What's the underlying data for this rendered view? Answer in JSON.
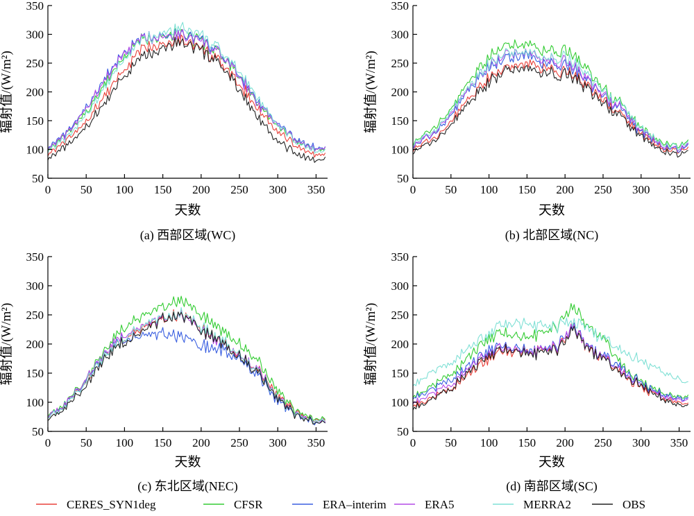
{
  "chart_data": [
    {
      "type": "line",
      "xlabel": "天数",
      "ylabel": "辐射值/(W/m²)",
      "caption": "(a) 西部区域(WC)",
      "xlim": [
        0,
        365
      ],
      "ylim": [
        50,
        350
      ],
      "xticks": [
        "0",
        "50",
        "100",
        "150",
        "200",
        "250",
        "300",
        "350"
      ],
      "yticks": [
        "50",
        "100",
        "150",
        "200",
        "250",
        "300",
        "350"
      ],
      "x": [
        0,
        25,
        50,
        75,
        100,
        125,
        150,
        175,
        200,
        225,
        250,
        275,
        300,
        325,
        350,
        362
      ],
      "series": [
        {
          "name": "CERES_SYN1deg",
          "color": "#e8413a",
          "values": [
            92,
            115,
            148,
            195,
            240,
            275,
            285,
            290,
            275,
            250,
            215,
            170,
            128,
            105,
            90,
            92
          ]
        },
        {
          "name": "CFSR",
          "color": "#33cc33",
          "values": [
            100,
            125,
            165,
            215,
            262,
            292,
            300,
            300,
            288,
            262,
            228,
            180,
            138,
            115,
            100,
            102
          ]
        },
        {
          "name": "ERA-interim",
          "color": "#3a5fe0",
          "values": [
            104,
            128,
            172,
            225,
            270,
            295,
            300,
            300,
            290,
            265,
            230,
            183,
            142,
            118,
            102,
            104
          ]
        },
        {
          "name": "ERA5",
          "color": "#b44ae6",
          "values": [
            102,
            126,
            170,
            222,
            268,
            293,
            299,
            299,
            288,
            263,
            227,
            180,
            140,
            115,
            100,
            101
          ]
        },
        {
          "name": "MERRA2",
          "color": "#7fe0d5",
          "values": [
            98,
            120,
            160,
            210,
            258,
            290,
            305,
            312,
            298,
            270,
            235,
            188,
            140,
            112,
            96,
            98
          ]
        },
        {
          "name": "OBS",
          "color": "#222222",
          "values": [
            85,
            105,
            138,
            183,
            228,
            262,
            280,
            285,
            272,
            245,
            205,
            155,
            112,
            92,
            80,
            84
          ]
        }
      ]
    },
    {
      "type": "line",
      "xlabel": "天数",
      "ylabel": "辐射值/(W/m²)",
      "caption": "(b) 北部区域(NC)",
      "xlim": [
        0,
        365
      ],
      "ylim": [
        50,
        350
      ],
      "xticks": [
        "0",
        "50",
        "100",
        "150",
        "200",
        "250",
        "300",
        "350"
      ],
      "yticks": [
        "50",
        "100",
        "150",
        "200",
        "250",
        "300",
        "350"
      ],
      "x": [
        0,
        25,
        50,
        75,
        100,
        125,
        150,
        175,
        200,
        225,
        250,
        275,
        300,
        325,
        350,
        362
      ],
      "series": [
        {
          "name": "CERES_SYN1deg",
          "color": "#e8413a",
          "values": [
            100,
            118,
            148,
            190,
            225,
            245,
            250,
            240,
            238,
            215,
            185,
            160,
            125,
            105,
            98,
            100
          ]
        },
        {
          "name": "CFSR",
          "color": "#33cc33",
          "values": [
            110,
            135,
            170,
            220,
            262,
            285,
            283,
            270,
            275,
            245,
            205,
            178,
            135,
            115,
            108,
            112
          ]
        },
        {
          "name": "ERA-interim",
          "color": "#3a5fe0",
          "values": [
            105,
            125,
            160,
            205,
            242,
            262,
            265,
            248,
            250,
            225,
            193,
            168,
            128,
            108,
            100,
            105
          ]
        },
        {
          "name": "ERA5",
          "color": "#b44ae6",
          "values": [
            106,
            127,
            163,
            208,
            248,
            268,
            270,
            255,
            255,
            228,
            195,
            170,
            130,
            110,
            102,
            107
          ]
        },
        {
          "name": "MERRA2",
          "color": "#7fe0d5",
          "values": [
            108,
            130,
            165,
            210,
            250,
            270,
            270,
            258,
            262,
            235,
            202,
            178,
            135,
            113,
            105,
            110
          ]
        },
        {
          "name": "OBS",
          "color": "#222222",
          "values": [
            95,
            113,
            142,
            183,
            218,
            240,
            242,
            232,
            232,
            210,
            180,
            155,
            120,
            100,
            92,
            96
          ]
        }
      ]
    },
    {
      "type": "line",
      "xlabel": "天数",
      "ylabel": "辐射值/(W/m²)",
      "caption": "(c) 东北区域(NEC)",
      "xlim": [
        0,
        365
      ],
      "ylim": [
        50,
        350
      ],
      "xticks": [
        "0",
        "50",
        "100",
        "150",
        "200",
        "250",
        "300",
        "350"
      ],
      "yticks": [
        "50",
        "100",
        "150",
        "200",
        "250",
        "300",
        "350"
      ],
      "x": [
        0,
        25,
        50,
        75,
        100,
        125,
        150,
        175,
        200,
        225,
        250,
        275,
        300,
        325,
        350,
        362
      ],
      "series": [
        {
          "name": "CERES_SYN1deg",
          "color": "#e8413a",
          "values": [
            75,
            98,
            138,
            182,
            212,
            225,
            240,
            250,
            228,
            205,
            185,
            155,
            110,
            80,
            70,
            70
          ]
        },
        {
          "name": "CFSR",
          "color": "#33cc33",
          "values": [
            78,
            100,
            142,
            190,
            232,
            245,
            262,
            275,
            252,
            225,
            205,
            170,
            118,
            82,
            72,
            72
          ]
        },
        {
          "name": "ERA-interim",
          "color": "#3a5fe0",
          "values": [
            76,
            98,
            138,
            182,
            210,
            210,
            215,
            212,
            198,
            190,
            178,
            145,
            100,
            76,
            65,
            66
          ]
        },
        {
          "name": "ERA5",
          "color": "#b44ae6",
          "values": [
            76,
            99,
            140,
            185,
            218,
            228,
            242,
            248,
            225,
            203,
            185,
            155,
            108,
            78,
            68,
            68
          ]
        },
        {
          "name": "MERRA2",
          "color": "#7fe0d5",
          "values": [
            74,
            96,
            137,
            180,
            212,
            228,
            245,
            252,
            230,
            208,
            186,
            152,
            106,
            78,
            68,
            68
          ]
        },
        {
          "name": "OBS",
          "color": "#222222",
          "values": [
            70,
            92,
            130,
            175,
            205,
            218,
            240,
            250,
            225,
            205,
            182,
            150,
            105,
            75,
            66,
            66
          ]
        }
      ]
    },
    {
      "type": "line",
      "xlabel": "天数",
      "ylabel": "辐射值/(W/m²)",
      "caption": "(d) 南部区域(SC)",
      "xlim": [
        0,
        365
      ],
      "ylim": [
        50,
        350
      ],
      "xticks": [
        "0",
        "50",
        "100",
        "150",
        "200",
        "250",
        "300",
        "350"
      ],
      "yticks": [
        "50",
        "100",
        "150",
        "200",
        "250",
        "300",
        "350"
      ],
      "x": [
        0,
        25,
        50,
        75,
        100,
        125,
        150,
        175,
        200,
        210,
        225,
        250,
        275,
        300,
        325,
        350,
        362
      ],
      "series": [
        {
          "name": "CERES_SYN1deg",
          "color": "#e8413a",
          "values": [
            95,
            105,
            125,
            150,
            175,
            190,
            188,
            185,
            200,
            235,
            195,
            175,
            150,
            125,
            110,
            100,
            100
          ]
        },
        {
          "name": "CFSR",
          "color": "#33cc33",
          "values": [
            110,
            125,
            150,
            180,
            210,
            220,
            210,
            218,
            240,
            270,
            235,
            210,
            165,
            135,
            118,
            110,
            112
          ]
        },
        {
          "name": "ERA-interim",
          "color": "#3a5fe0",
          "values": [
            108,
            120,
            140,
            165,
            190,
            198,
            190,
            188,
            205,
            238,
            200,
            180,
            160,
            132,
            115,
            108,
            110
          ]
        },
        {
          "name": "ERA5",
          "color": "#b44ae6",
          "values": [
            100,
            112,
            132,
            160,
            185,
            195,
            188,
            186,
            203,
            236,
            198,
            178,
            155,
            130,
            112,
            105,
            107
          ]
        },
        {
          "name": "MERRA2",
          "color": "#7fe0d5",
          "values": [
            130,
            150,
            170,
            195,
            218,
            238,
            235,
            228,
            232,
            240,
            228,
            210,
            190,
            170,
            155,
            140,
            135
          ]
        },
        {
          "name": "OBS",
          "color": "#222222",
          "values": [
            90,
            102,
            125,
            155,
            180,
            192,
            185,
            182,
            198,
            232,
            195,
            175,
            150,
            128,
            108,
            95,
            97
          ]
        }
      ]
    }
  ],
  "legend": [
    {
      "name": "CERES_SYN1deg",
      "color": "#e8413a"
    },
    {
      "name": "CFSR",
      "color": "#33cc33"
    },
    {
      "name": "ERA–interim",
      "color": "#3a5fe0"
    },
    {
      "name": "ERA5",
      "color": "#b44ae6"
    },
    {
      "name": "MERRA2",
      "color": "#7fe0d5"
    },
    {
      "name": "OBS",
      "color": "#222222"
    }
  ]
}
